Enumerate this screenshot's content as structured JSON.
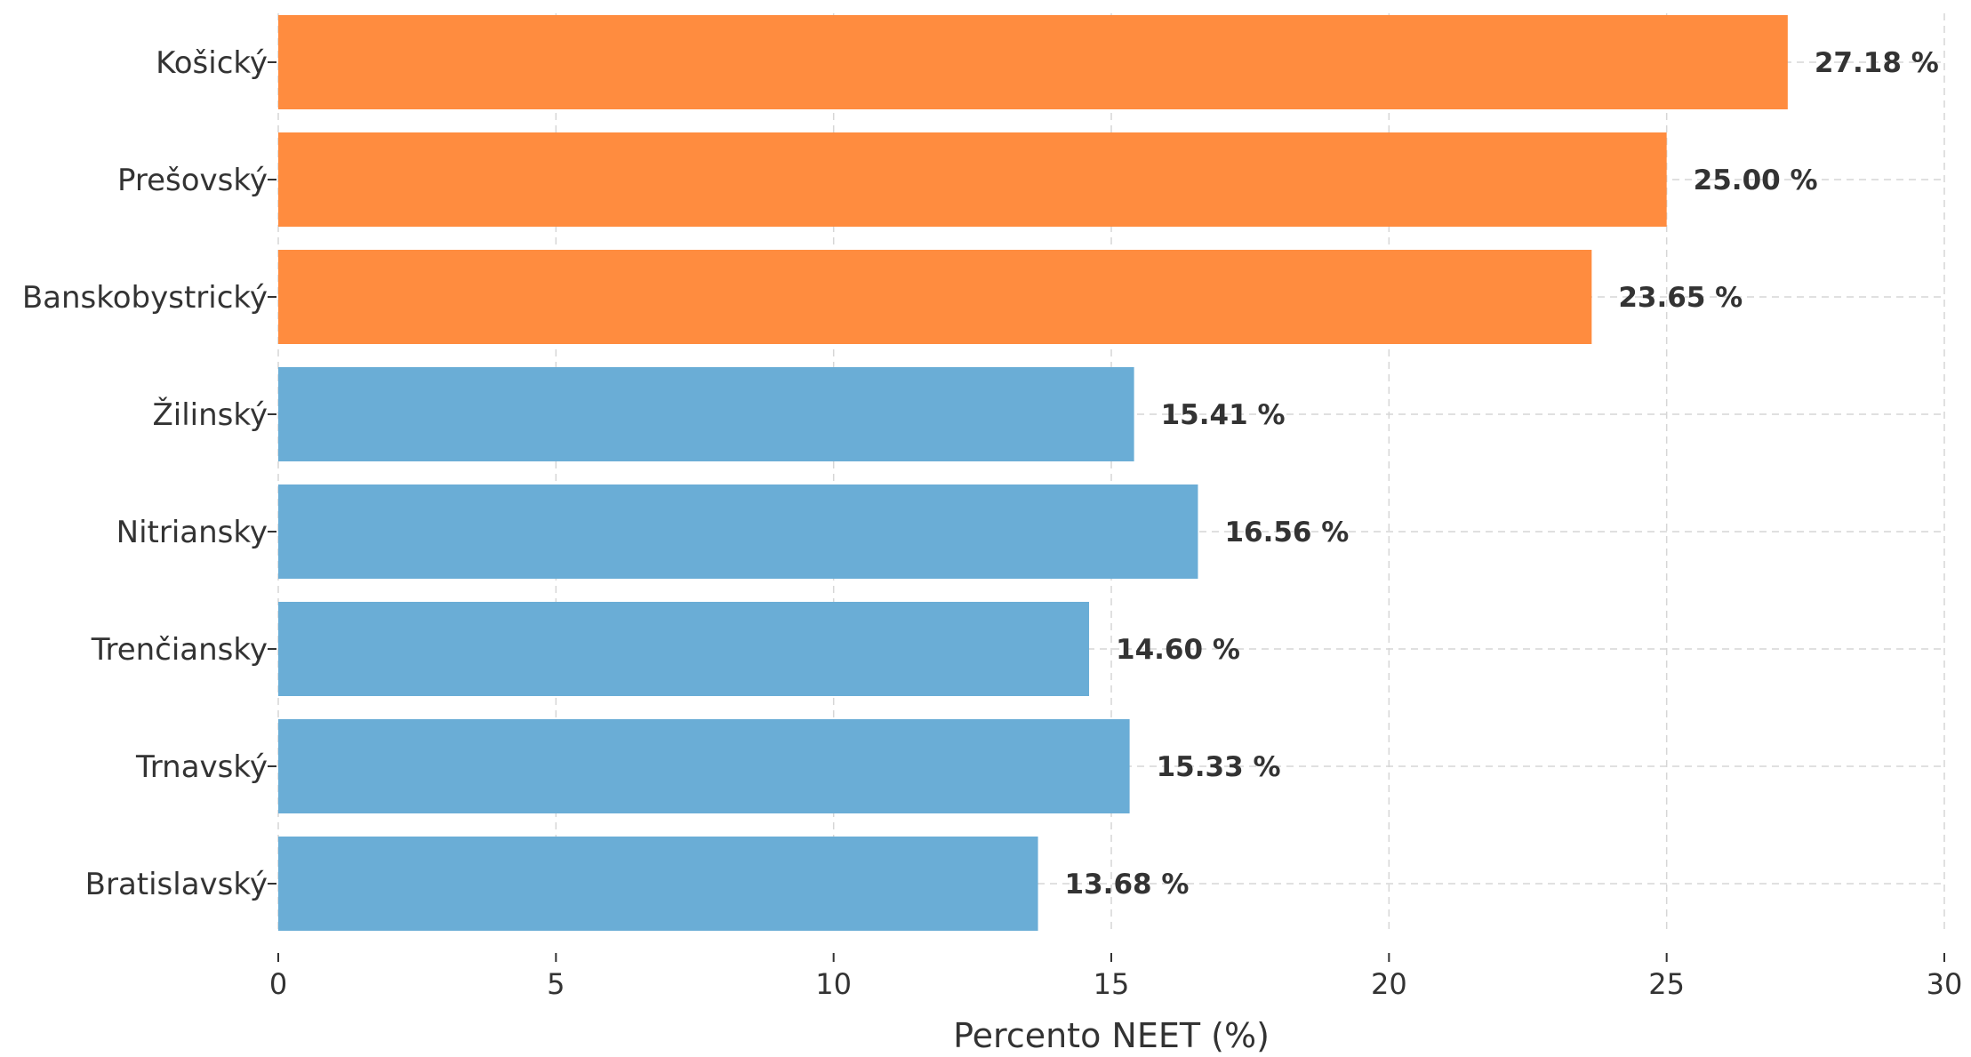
{
  "chart_data": {
    "type": "bar",
    "orientation": "horizontal",
    "categories": [
      "Košický",
      "Prešovský",
      "Banskobystrický",
      "Žilinský",
      "Nitriansky",
      "Trenčiansky",
      "Trnavský",
      "Bratislavský"
    ],
    "values": [
      27.18,
      25.0,
      23.65,
      15.41,
      16.56,
      14.6,
      15.33,
      13.68
    ],
    "value_labels": [
      "27.18 %",
      "25.00 %",
      "23.65 %",
      "15.41 %",
      "16.56 %",
      "14.60 %",
      "15.33 %",
      "13.68 %"
    ],
    "highlight": [
      true,
      true,
      true,
      false,
      false,
      false,
      false,
      false
    ],
    "colors": {
      "highlight": "#ff8c3f",
      "default": "#6aadd6"
    },
    "xlabel": "Percento NEET (%)",
    "ylabel": "",
    "title": "",
    "xlim": [
      0,
      30
    ],
    "xticks": [
      0,
      5,
      10,
      15,
      20,
      25,
      30
    ],
    "grid": true
  }
}
